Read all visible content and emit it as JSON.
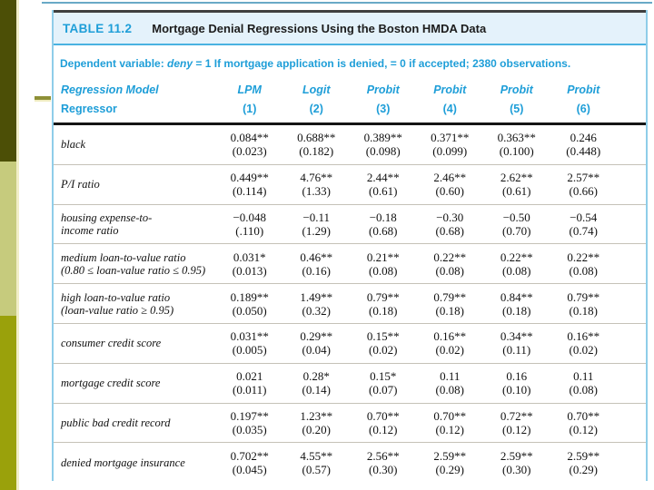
{
  "colors": {
    "accent_cyan_text": "#1e9ed8",
    "title_band_bg": "#e4f2fb",
    "table_border_cyan": "#8fcde9",
    "band_rule_cyan": "#49b2e1",
    "header_rule_black": "#151515",
    "row_separator": "#c5c2b8",
    "sidebar_dark_olive": "#4c4f06",
    "sidebar_light_green": "#c6cb7d",
    "sidebar_olive": "#9aa10b",
    "sidebar_accent_strip": "#f1eec8",
    "top_rule_blue": "#69a9c6",
    "dash_olive": "#8e9037"
  },
  "table": {
    "label": "TABLE 11.2",
    "title": "Mortgage Denial Regressions Using the Boston HMDA Data",
    "dependent_note": {
      "prefix": "Dependent variable: ",
      "var": "deny",
      "rest": " = 1 If mortgage application is denied, = 0 if accepted; 2380 observations."
    },
    "header": {
      "model_row_label": "Regression Model",
      "regressor_row_label": "Regressor",
      "cols": [
        {
          "model": "LPM",
          "num": "(1)"
        },
        {
          "model": "Logit",
          "num": "(2)"
        },
        {
          "model": "Probit",
          "num": "(3)"
        },
        {
          "model": "Probit",
          "num": "(4)"
        },
        {
          "model": "Probit",
          "num": "(5)"
        },
        {
          "model": "Probit",
          "num": "(6)"
        }
      ]
    },
    "rows": [
      {
        "label1": "black",
        "label2": "",
        "cells": [
          {
            "c": "0.084**",
            "s": "(0.023)"
          },
          {
            "c": "0.688**",
            "s": "(0.182)"
          },
          {
            "c": "0.389**",
            "s": "(0.098)"
          },
          {
            "c": "0.371**",
            "s": "(0.099)"
          },
          {
            "c": "0.363**",
            "s": "(0.100)"
          },
          {
            "c": "0.246",
            "s": "(0.448)"
          }
        ]
      },
      {
        "label1": "P/I ratio",
        "label2": "",
        "cells": [
          {
            "c": "0.449**",
            "s": "(0.114)"
          },
          {
            "c": "4.76**",
            "s": "(1.33)"
          },
          {
            "c": "2.44**",
            "s": "(0.61)"
          },
          {
            "c": "2.46**",
            "s": "(0.60)"
          },
          {
            "c": "2.62**",
            "s": "(0.61)"
          },
          {
            "c": "2.57**",
            "s": "(0.66)"
          }
        ]
      },
      {
        "label1": "housing expense-to-",
        "label2": "income ratio",
        "cells": [
          {
            "c": "−0.048",
            "s": "(.110)"
          },
          {
            "c": "−0.11",
            "s": "(1.29)"
          },
          {
            "c": "−0.18",
            "s": "(0.68)"
          },
          {
            "c": "−0.30",
            "s": "(0.68)"
          },
          {
            "c": "−0.50",
            "s": "(0.70)"
          },
          {
            "c": "−0.54",
            "s": "(0.74)"
          }
        ]
      },
      {
        "label1": "medium loan-to-value ratio",
        "label2": "(0.80 ≤ loan-value ratio ≤ 0.95)",
        "cells": [
          {
            "c": "0.031*",
            "s": "(0.013)"
          },
          {
            "c": "0.46**",
            "s": "(0.16)"
          },
          {
            "c": "0.21**",
            "s": "(0.08)"
          },
          {
            "c": "0.22**",
            "s": "(0.08)"
          },
          {
            "c": "0.22**",
            "s": "(0.08)"
          },
          {
            "c": "0.22**",
            "s": "(0.08)"
          }
        ]
      },
      {
        "label1": "high loan-to-value ratio",
        "label2": "(loan-value ratio ≥ 0.95)",
        "cells": [
          {
            "c": "0.189**",
            "s": "(0.050)"
          },
          {
            "c": "1.49**",
            "s": "(0.32)"
          },
          {
            "c": "0.79**",
            "s": "(0.18)"
          },
          {
            "c": "0.79**",
            "s": "(0.18)"
          },
          {
            "c": "0.84**",
            "s": "(0.18)"
          },
          {
            "c": "0.79**",
            "s": "(0.18)"
          }
        ]
      },
      {
        "label1": "consumer credit score",
        "label2": "",
        "cells": [
          {
            "c": "0.031**",
            "s": "(0.005)"
          },
          {
            "c": "0.29**",
            "s": "(0.04)"
          },
          {
            "c": "0.15**",
            "s": "(0.02)"
          },
          {
            "c": "0.16**",
            "s": "(0.02)"
          },
          {
            "c": "0.34**",
            "s": "(0.11)"
          },
          {
            "c": "0.16**",
            "s": "(0.02)"
          }
        ]
      },
      {
        "label1": "mortgage credit score",
        "label2": "",
        "cells": [
          {
            "c": "0.021",
            "s": "(0.011)"
          },
          {
            "c": "0.28*",
            "s": "(0.14)"
          },
          {
            "c": "0.15*",
            "s": "(0.07)"
          },
          {
            "c": "0.11",
            "s": "(0.08)"
          },
          {
            "c": "0.16",
            "s": "(0.10)"
          },
          {
            "c": "0.11",
            "s": "(0.08)"
          }
        ]
      },
      {
        "label1": "public bad credit record",
        "label2": "",
        "cells": [
          {
            "c": "0.197**",
            "s": "(0.035)"
          },
          {
            "c": "1.23**",
            "s": "(0.20)"
          },
          {
            "c": "0.70**",
            "s": "(0.12)"
          },
          {
            "c": "0.70**",
            "s": "(0.12)"
          },
          {
            "c": "0.72**",
            "s": "(0.12)"
          },
          {
            "c": "0.70**",
            "s": "(0.12)"
          }
        ]
      },
      {
        "label1": "denied mortgage insurance",
        "label2": "",
        "cells": [
          {
            "c": "0.702**",
            "s": "(0.045)"
          },
          {
            "c": "4.55**",
            "s": "(0.57)"
          },
          {
            "c": "2.56**",
            "s": "(0.30)"
          },
          {
            "c": "2.59**",
            "s": "(0.29)"
          },
          {
            "c": "2.59**",
            "s": "(0.30)"
          },
          {
            "c": "2.59**",
            "s": "(0.29)"
          }
        ]
      }
    ]
  }
}
